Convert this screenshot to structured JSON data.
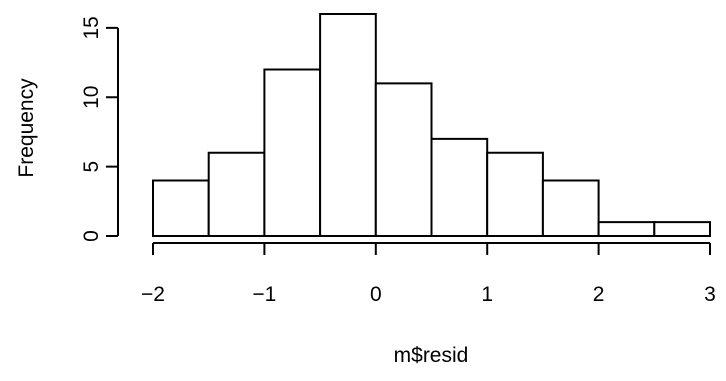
{
  "chart_data": {
    "type": "bar",
    "subtype": "histogram",
    "xlabel": "m$resid",
    "ylabel": "Frequency",
    "bin_edges": [
      -2,
      -1.5,
      -1,
      -0.5,
      0,
      0.5,
      1,
      1.5,
      2,
      2.5,
      3
    ],
    "values": [
      4,
      6,
      12,
      16,
      11,
      7,
      6,
      4,
      1,
      1
    ],
    "xlim": [
      -2,
      3
    ],
    "ylim": [
      0,
      16
    ],
    "xticks": [
      -2,
      -1,
      0,
      1,
      2,
      3
    ],
    "xtick_labels": [
      "−2",
      "−1",
      "0",
      "1",
      "2",
      "3"
    ],
    "yticks": [
      0,
      5,
      10,
      15
    ],
    "ytick_labels": [
      "0",
      "5",
      "10",
      "15"
    ],
    "grid": false,
    "legend": "none",
    "colors": {
      "bar_fill": "#ffffff",
      "bar_stroke": "#000000"
    }
  }
}
